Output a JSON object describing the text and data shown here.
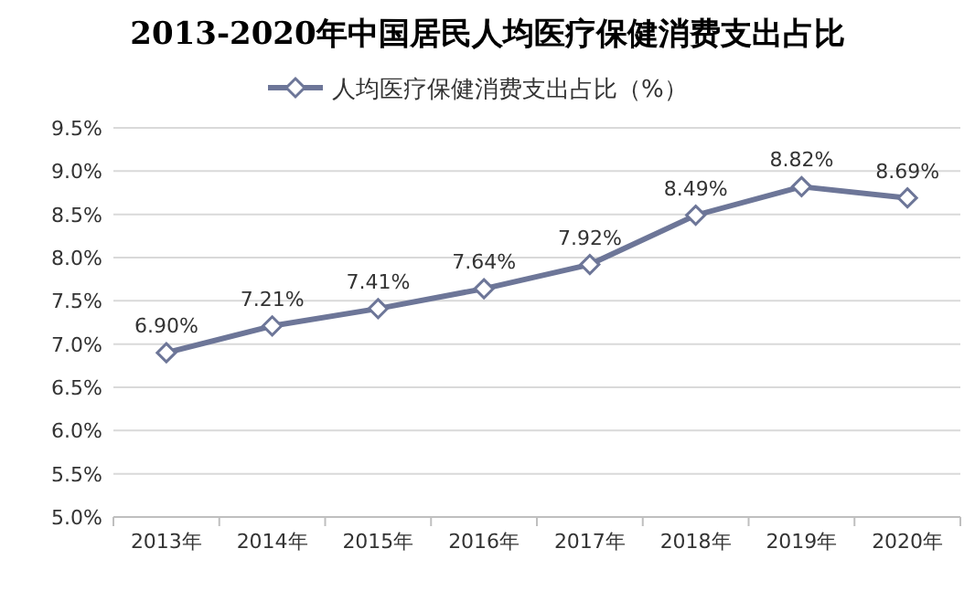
{
  "chart_data": {
    "type": "line",
    "title": "2013-2020年中国居民人均医疗保健消费支出占比",
    "categories": [
      "2013年",
      "2014年",
      "2015年",
      "2016年",
      "2017年",
      "2018年",
      "2019年",
      "2020年"
    ],
    "series": [
      {
        "name": "人均医疗保健消费支出占比（%）",
        "color": "#6d7698",
        "values": [
          6.9,
          7.21,
          7.41,
          7.64,
          7.92,
          8.49,
          8.82,
          8.69
        ],
        "value_labels": [
          "6.90%",
          "7.21%",
          "7.41%",
          "7.64%",
          "7.92%",
          "8.49%",
          "8.82%",
          "8.69%"
        ]
      }
    ],
    "ylim": [
      5,
      9.5
    ],
    "yticks": [
      {
        "value": 5,
        "label": "5.0%"
      },
      {
        "value": 5.5,
        "label": "5.5%"
      },
      {
        "value": 6,
        "label": "6.0%"
      },
      {
        "value": 6.5,
        "label": "6.5%"
      },
      {
        "value": 7,
        "label": "7.0%"
      },
      {
        "value": 7.5,
        "label": "7.5%"
      },
      {
        "value": 8,
        "label": "8.0%"
      },
      {
        "value": 8.5,
        "label": "8.5%"
      },
      {
        "value": 9,
        "label": "9.0%"
      },
      {
        "value": 9.5,
        "label": "9.5%"
      }
    ],
    "grid": "y",
    "legend": "top",
    "marker": "diamond",
    "line_style": "solid"
  }
}
